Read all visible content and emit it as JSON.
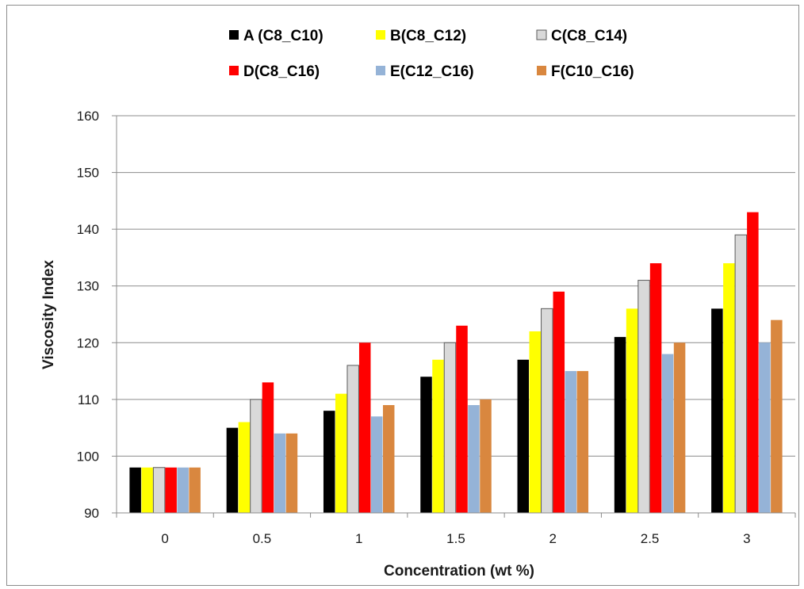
{
  "chart_data": {
    "type": "bar",
    "title": "",
    "xlabel": "Concentration (wt %)",
    "ylabel": "Viscosity Index",
    "ylim": [
      90,
      160
    ],
    "yticks": [
      90,
      100,
      110,
      120,
      130,
      140,
      150,
      160
    ],
    "grid": true,
    "legend_position": "top",
    "categories": [
      "0",
      "0.5",
      "1",
      "1.5",
      "2",
      "2.5",
      "3"
    ],
    "series": [
      {
        "name": "A (C8_C10)",
        "color": "#000000",
        "values": [
          98,
          105,
          108,
          114,
          117,
          121,
          126
        ]
      },
      {
        "name": "B(C8_C12)",
        "color": "#ffff00",
        "values": [
          98,
          106,
          111,
          117,
          122,
          126,
          134
        ]
      },
      {
        "name": "C(C8_C14)",
        "color": "#d9d9d9",
        "values": [
          98,
          110,
          116,
          120,
          126,
          131,
          139
        ]
      },
      {
        "name": "D(C8_C16)",
        "color": "#ff0000",
        "values": [
          98,
          113,
          120,
          123,
          129,
          134,
          143
        ]
      },
      {
        "name": "E(C12_C16)",
        "color": "#95b3d7",
        "values": [
          98,
          104,
          107,
          109,
          115,
          118,
          120
        ]
      },
      {
        "name": "F(C10_C16)",
        "color": "#d9873f",
        "values": [
          98,
          104,
          109,
          110,
          115,
          120,
          124
        ]
      }
    ]
  }
}
